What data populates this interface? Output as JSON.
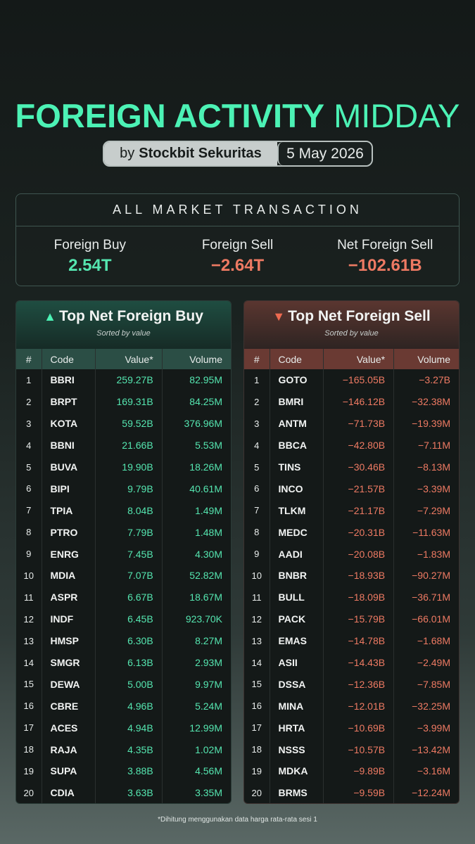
{
  "title": {
    "bold": "FOREIGN ACTIVITY",
    "light": "MIDDAY"
  },
  "byline": {
    "prefix": "by",
    "brand": "Stockbit Sekuritas",
    "date": "5 May 2026"
  },
  "summary": {
    "heading": "ALL MARKET TRANSACTION",
    "stats": [
      {
        "label": "Foreign Buy",
        "value": "2.54T",
        "color": "#55e6b0"
      },
      {
        "label": "Foreign Sell",
        "value": "−2.64T",
        "color": "#ee7a63"
      },
      {
        "label": "Net Foreign Sell",
        "value": "−102.61B",
        "color": "#ee7a63"
      }
    ]
  },
  "columns": {
    "num": "#",
    "code": "Code",
    "value": "Value*",
    "volume": "Volume"
  },
  "buy": {
    "icon": "triangle-up-icon",
    "title": "Top Net Foreign Buy",
    "subtitle": "Sorted by value",
    "rows": [
      [
        "1",
        "BBRI",
        "259.27B",
        "82.95M"
      ],
      [
        "2",
        "BRPT",
        "169.31B",
        "84.25M"
      ],
      [
        "3",
        "KOTA",
        "59.52B",
        "376.96M"
      ],
      [
        "4",
        "BBNI",
        "21.66B",
        "5.53M"
      ],
      [
        "5",
        "BUVA",
        "19.90B",
        "18.26M"
      ],
      [
        "6",
        "BIPI",
        "9.79B",
        "40.61M"
      ],
      [
        "7",
        "TPIA",
        "8.04B",
        "1.49M"
      ],
      [
        "8",
        "PTRO",
        "7.79B",
        "1.48M"
      ],
      [
        "9",
        "ENRG",
        "7.45B",
        "4.30M"
      ],
      [
        "10",
        "MDIA",
        "7.07B",
        "52.82M"
      ],
      [
        "11",
        "ASPR",
        "6.67B",
        "18.67M"
      ],
      [
        "12",
        "INDF",
        "6.45B",
        "923.70K"
      ],
      [
        "13",
        "HMSP",
        "6.30B",
        "8.27M"
      ],
      [
        "14",
        "SMGR",
        "6.13B",
        "2.93M"
      ],
      [
        "15",
        "DEWA",
        "5.00B",
        "9.97M"
      ],
      [
        "16",
        "CBRE",
        "4.96B",
        "5.24M"
      ],
      [
        "17",
        "ACES",
        "4.94B",
        "12.99M"
      ],
      [
        "18",
        "RAJA",
        "4.35B",
        "1.02M"
      ],
      [
        "19",
        "SUPA",
        "3.88B",
        "4.56M"
      ],
      [
        "20",
        "CDIA",
        "3.63B",
        "3.35M"
      ]
    ]
  },
  "sell": {
    "icon": "triangle-down-icon",
    "title": "Top Net Foreign Sell",
    "subtitle": "Sorted by value",
    "rows": [
      [
        "1",
        "GOTO",
        "−165.05B",
        "−3.27B"
      ],
      [
        "2",
        "BMRI",
        "−146.12B",
        "−32.38M"
      ],
      [
        "3",
        "ANTM",
        "−71.73B",
        "−19.39M"
      ],
      [
        "4",
        "BBCA",
        "−42.80B",
        "−7.11M"
      ],
      [
        "5",
        "TINS",
        "−30.46B",
        "−8.13M"
      ],
      [
        "6",
        "INCO",
        "−21.57B",
        "−3.39M"
      ],
      [
        "7",
        "TLKM",
        "−21.17B",
        "−7.29M"
      ],
      [
        "8",
        "MEDC",
        "−20.31B",
        "−11.63M"
      ],
      [
        "9",
        "AADI",
        "−20.08B",
        "−1.83M"
      ],
      [
        "10",
        "BNBR",
        "−18.93B",
        "−90.27M"
      ],
      [
        "11",
        "BULL",
        "−18.09B",
        "−36.71M"
      ],
      [
        "12",
        "PACK",
        "−15.79B",
        "−66.01M"
      ],
      [
        "13",
        "EMAS",
        "−14.78B",
        "−1.68M"
      ],
      [
        "14",
        "ASII",
        "−14.43B",
        "−2.49M"
      ],
      [
        "15",
        "DSSA",
        "−12.36B",
        "−7.85M"
      ],
      [
        "16",
        "MINA",
        "−12.01B",
        "−32.25M"
      ],
      [
        "17",
        "HRTA",
        "−10.69B",
        "−3.99M"
      ],
      [
        "18",
        "NSSS",
        "−10.57B",
        "−13.42M"
      ],
      [
        "19",
        "MDKA",
        "−9.89B",
        "−3.16M"
      ],
      [
        "20",
        "BRMS",
        "−9.59B",
        "−12.24M"
      ]
    ]
  },
  "footnote": "*Dihitung menggunakan data harga rata-rata sesi 1"
}
